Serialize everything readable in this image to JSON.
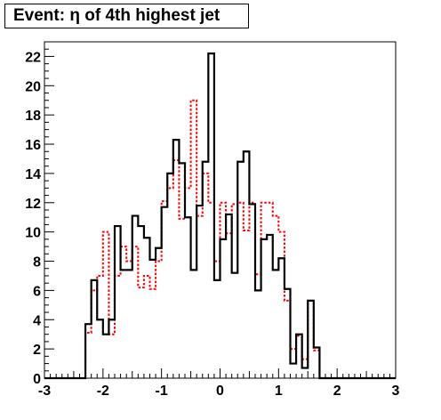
{
  "chart_data": {
    "type": "histogram",
    "title": "Event: η of 4th highest jet",
    "xlim": [
      -3,
      3
    ],
    "ylim": [
      0,
      23
    ],
    "x_ticks": [
      "-3",
      "-2",
      "-1",
      "0",
      "1",
      "2",
      "3"
    ],
    "y_ticks": [
      "0",
      "2",
      "4",
      "6",
      "8",
      "10",
      "12",
      "14",
      "16",
      "18",
      "20",
      "22"
    ],
    "bin_width": 0.1,
    "series": [
      {
        "style": "solid",
        "color": "#000000",
        "bin_low_edges": [
          -3.0,
          -2.9,
          -2.8,
          -2.7,
          -2.6,
          -2.5,
          -2.4,
          -2.3,
          -2.2,
          -2.1,
          -2.0,
          -1.9,
          -1.8,
          -1.7,
          -1.6,
          -1.5,
          -1.4,
          -1.3,
          -1.2,
          -1.1,
          -1.0,
          -0.9,
          -0.8,
          -0.7,
          -0.6,
          -0.5,
          -0.4,
          -0.3,
          -0.2,
          -0.1,
          0.0,
          0.1,
          0.2,
          0.3,
          0.4,
          0.5,
          0.6,
          0.7,
          0.8,
          0.9,
          1.0,
          1.1,
          1.2,
          1.3,
          1.4,
          1.5,
          1.6,
          1.7,
          1.8,
          1.9,
          2.0,
          2.1,
          2.2,
          2.3,
          2.4,
          2.5,
          2.6,
          2.7,
          2.8,
          2.9
        ],
        "values": [
          0,
          0,
          0,
          0,
          0,
          0,
          0,
          3.7,
          6.7,
          4,
          3,
          4,
          10.4,
          7.4,
          7.4,
          11.1,
          10.4,
          9.6,
          8.1,
          8.9,
          11.7,
          14,
          16.3,
          14.7,
          11,
          7.4,
          11.8,
          14.8,
          22.2,
          6.7,
          9.5,
          11.2,
          7.2,
          14.8,
          15.5,
          11.9,
          6,
          9.5,
          9.8,
          7.4,
          8.2,
          6.1,
          1,
          3,
          0.7,
          5.3,
          2.1,
          0,
          0,
          0,
          0,
          0,
          0,
          0,
          0,
          0,
          0,
          0,
          0,
          0
        ]
      },
      {
        "style": "dashed",
        "color": "#ff0000",
        "bin_low_edges": [
          -3.0,
          -2.9,
          -2.8,
          -2.7,
          -2.6,
          -2.5,
          -2.4,
          -2.3,
          -2.2,
          -2.1,
          -2.0,
          -1.9,
          -1.8,
          -1.7,
          -1.6,
          -1.5,
          -1.4,
          -1.3,
          -1.2,
          -1.1,
          -1.0,
          -0.9,
          -0.8,
          -0.7,
          -0.6,
          -0.5,
          -0.4,
          -0.3,
          -0.2,
          -0.1,
          0.0,
          0.1,
          0.2,
          0.3,
          0.4,
          0.5,
          0.6,
          0.7,
          0.8,
          0.9,
          1.0,
          1.1,
          1.2,
          1.3,
          1.4,
          1.5,
          1.6,
          1.7,
          1.8,
          1.9,
          2.0,
          2.1,
          2.2,
          2.3,
          2.4,
          2.5,
          2.6,
          2.7,
          2.8,
          2.9
        ],
        "values": [
          0,
          0,
          0,
          0,
          0,
          0,
          0,
          3.1,
          6,
          7,
          10,
          3,
          7,
          9,
          8,
          9,
          6.2,
          7,
          6.1,
          8,
          12.1,
          13,
          14.9,
          10.9,
          13,
          19,
          11.1,
          14,
          12,
          8,
          12,
          9.9,
          11.9,
          12,
          10.1,
          12,
          7.1,
          12,
          12,
          11.1,
          10,
          5.3,
          2,
          2.9,
          1.3,
          5.3,
          1.9,
          0,
          0,
          0,
          0,
          0,
          0,
          0,
          0,
          0,
          0,
          0,
          0,
          0
        ]
      }
    ],
    "legend": "none",
    "grid": false
  }
}
